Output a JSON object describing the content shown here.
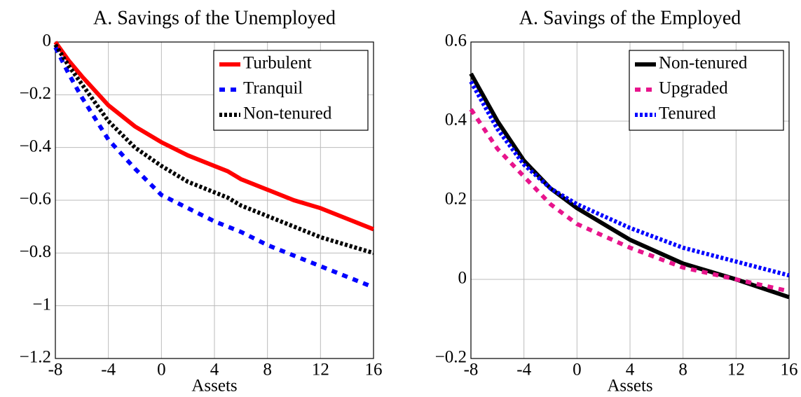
{
  "chart_data": [
    {
      "type": "line",
      "title": "A. Savings of the Unemployed",
      "x_label": "Assets",
      "x": [
        -8,
        -7,
        -6,
        -4,
        -2,
        0,
        2,
        4,
        5,
        6,
        8,
        10,
        12,
        14,
        16
      ],
      "series": [
        {
          "name": "Turbulent",
          "color": "#ff0000",
          "dash": "solid",
          "values": [
            0,
            -0.07,
            -0.13,
            -0.24,
            -0.32,
            -0.38,
            -0.43,
            -0.47,
            -0.49,
            -0.52,
            -0.56,
            -0.6,
            -0.63,
            -0.67,
            -0.71
          ]
        },
        {
          "name": "Tranquil",
          "color": "#0000ff",
          "dash": "dashed",
          "values": [
            -0.02,
            -0.12,
            -0.21,
            -0.37,
            -0.48,
            -0.58,
            -0.63,
            -0.68,
            -0.7,
            -0.72,
            -0.77,
            -0.81,
            -0.85,
            -0.89,
            -0.93
          ]
        },
        {
          "name": "Non-tenured",
          "color": "#000000",
          "dash": "dotted",
          "values": [
            -0.01,
            -0.09,
            -0.16,
            -0.3,
            -0.4,
            -0.47,
            -0.53,
            -0.57,
            -0.59,
            -0.62,
            -0.66,
            -0.7,
            -0.74,
            -0.77,
            -0.8
          ]
        }
      ],
      "xlim": [
        -8,
        16
      ],
      "xticks": [
        -8,
        -4,
        0,
        4,
        8,
        12,
        16
      ],
      "ylim": [
        -1.2,
        0
      ],
      "yticks": [
        {
          "value": -1.2,
          "label": "−1.2"
        },
        {
          "value": -1,
          "label": "−1"
        },
        {
          "value": -0.8,
          "label": "−0.8"
        },
        {
          "value": -0.6,
          "label": "−0.6"
        },
        {
          "value": -0.4,
          "label": "−0.4"
        },
        {
          "value": -0.2,
          "label": "−0.2"
        },
        0
      ],
      "grid": true,
      "legend": "top-right"
    },
    {
      "type": "line",
      "title": "A. Savings of the Employed",
      "x_label": "Assets",
      "x": [
        -8,
        -6,
        -4,
        -2,
        0,
        4,
        8,
        12,
        16
      ],
      "series": [
        {
          "name": "Non-tenured",
          "color": "#000000",
          "dash": "solid",
          "values": [
            0.52,
            0.4,
            0.3,
            0.23,
            0.18,
            0.1,
            0.04,
            0,
            -0.045
          ]
        },
        {
          "name": "Upgraded",
          "color": "#e8148c",
          "dash": "dashed",
          "values": [
            0.43,
            0.33,
            0.26,
            0.19,
            0.14,
            0.08,
            0.03,
            0,
            -0.03
          ]
        },
        {
          "name": "Tenured",
          "color": "#0000ff",
          "dash": "dotted",
          "values": [
            0.5,
            0.38,
            0.29,
            0.23,
            0.19,
            0.13,
            0.08,
            0.045,
            0.01
          ]
        }
      ],
      "xlim": [
        -8,
        16
      ],
      "xticks": [
        -8,
        -4,
        0,
        4,
        8,
        12,
        16
      ],
      "ylim": [
        -0.2,
        0.6
      ],
      "yticks": [
        {
          "value": -0.2,
          "label": "−0.2"
        },
        0,
        0.2,
        0.4,
        0.6
      ],
      "grid": true,
      "legend": "top-right"
    }
  ]
}
